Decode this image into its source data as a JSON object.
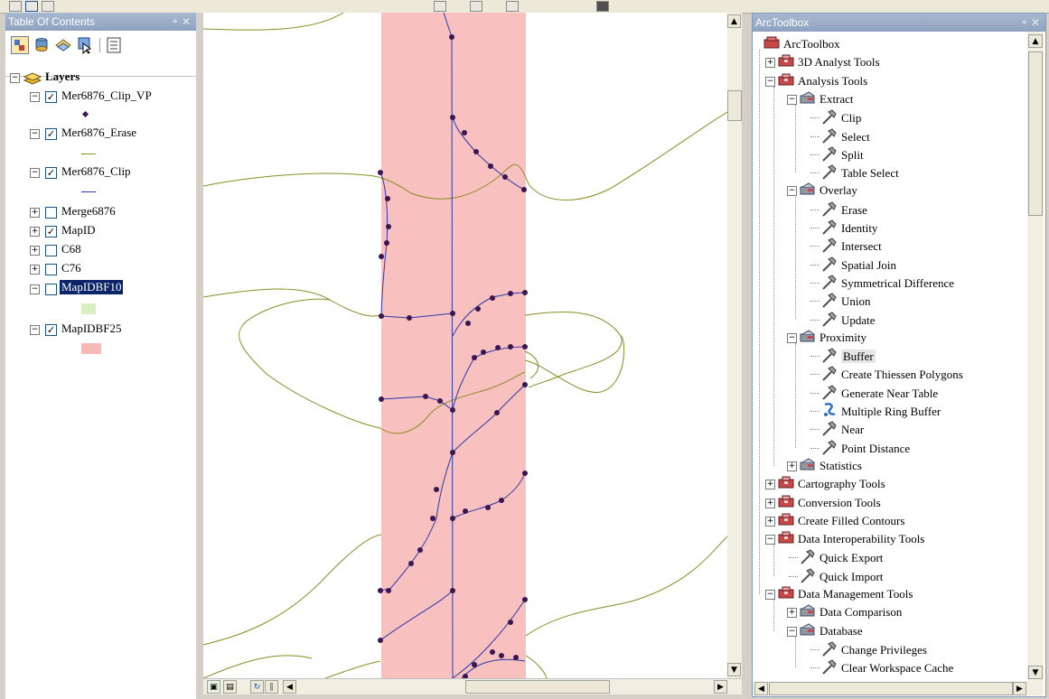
{
  "toc": {
    "title": "Table Of Contents",
    "root_label": "Layers",
    "layers": [
      {
        "name": "Mer6876_Clip_VP",
        "checked": true,
        "expanded": true,
        "legend": "point"
      },
      {
        "name": "Mer6876_Erase",
        "checked": true,
        "expanded": true,
        "legend": "line-olive"
      },
      {
        "name": "Mer6876_Clip",
        "checked": true,
        "expanded": true,
        "legend": "line-blue"
      },
      {
        "name": "Merge6876",
        "checked": false,
        "expanded": false
      },
      {
        "name": "MapID",
        "checked": true,
        "expanded": false
      },
      {
        "name": "C68",
        "checked": false,
        "expanded": false
      },
      {
        "name": "C76",
        "checked": false,
        "expanded": false
      },
      {
        "name": "MapIDBF10",
        "checked": false,
        "expanded": true,
        "selected": true,
        "legend": "fill-green"
      },
      {
        "name": "MapIDBF25",
        "checked": true,
        "expanded": true,
        "legend": "fill-pink"
      }
    ]
  },
  "toolbox": {
    "title": "ArcToolbox",
    "items": [
      {
        "label": "ArcToolbox",
        "level": 0,
        "type": "root"
      },
      {
        "label": "3D Analyst Tools",
        "level": 1,
        "type": "toolbox",
        "expander": "+"
      },
      {
        "label": "Analysis Tools",
        "level": 1,
        "type": "toolbox",
        "expander": "-"
      },
      {
        "label": "Extract",
        "level": 2,
        "type": "toolset",
        "expander": "-"
      },
      {
        "label": "Clip",
        "level": 3,
        "type": "tool"
      },
      {
        "label": "Select",
        "level": 3,
        "type": "tool"
      },
      {
        "label": "Split",
        "level": 3,
        "type": "tool"
      },
      {
        "label": "Table Select",
        "level": 3,
        "type": "tool"
      },
      {
        "label": "Overlay",
        "level": 2,
        "type": "toolset",
        "expander": "-"
      },
      {
        "label": "Erase",
        "level": 3,
        "type": "tool"
      },
      {
        "label": "Identity",
        "level": 3,
        "type": "tool"
      },
      {
        "label": "Intersect",
        "level": 3,
        "type": "tool"
      },
      {
        "label": "Spatial Join",
        "level": 3,
        "type": "tool"
      },
      {
        "label": "Symmetrical Difference",
        "level": 3,
        "type": "tool"
      },
      {
        "label": "Union",
        "level": 3,
        "type": "tool"
      },
      {
        "label": "Update",
        "level": 3,
        "type": "tool"
      },
      {
        "label": "Proximity",
        "level": 2,
        "type": "toolset",
        "expander": "-"
      },
      {
        "label": "Buffer",
        "level": 3,
        "type": "tool",
        "highlighted": true
      },
      {
        "label": "Create Thiessen Polygons",
        "level": 3,
        "type": "tool"
      },
      {
        "label": "Generate Near Table",
        "level": 3,
        "type": "tool"
      },
      {
        "label": "Multiple Ring Buffer",
        "level": 3,
        "type": "script"
      },
      {
        "label": "Near",
        "level": 3,
        "type": "tool"
      },
      {
        "label": "Point Distance",
        "level": 3,
        "type": "tool"
      },
      {
        "label": "Statistics",
        "level": 2,
        "type": "toolset",
        "expander": "+"
      },
      {
        "label": "Cartography Tools",
        "level": 1,
        "type": "toolbox",
        "expander": "+"
      },
      {
        "label": "Conversion Tools",
        "level": 1,
        "type": "toolbox",
        "expander": "+"
      },
      {
        "label": "Create Filled Contours",
        "level": 1,
        "type": "toolbox",
        "expander": "+"
      },
      {
        "label": "Data Interoperability Tools",
        "level": 1,
        "type": "toolbox",
        "expander": "-"
      },
      {
        "label": "Quick Export",
        "level": 2,
        "type": "tool"
      },
      {
        "label": "Quick Import",
        "level": 2,
        "type": "tool"
      },
      {
        "label": "Data Management Tools",
        "level": 1,
        "type": "toolbox",
        "expander": "-"
      },
      {
        "label": "Data Comparison",
        "level": 2,
        "type": "toolset",
        "expander": "+"
      },
      {
        "label": "Database",
        "level": 2,
        "type": "toolset",
        "expander": "-"
      },
      {
        "label": "Change Privileges",
        "level": 3,
        "type": "tool"
      },
      {
        "label": "Clear Workspace Cache",
        "level": 3,
        "type": "tool"
      }
    ]
  },
  "colors": {
    "buffer_fill": "#f9c0c0",
    "contour": "#8b8b23",
    "line": "#2b3aa8",
    "vertex": "#3a1550",
    "selection": "#0a246a",
    "legend_green": "#d8f0c0",
    "legend_pink": "#f8b8b8"
  }
}
